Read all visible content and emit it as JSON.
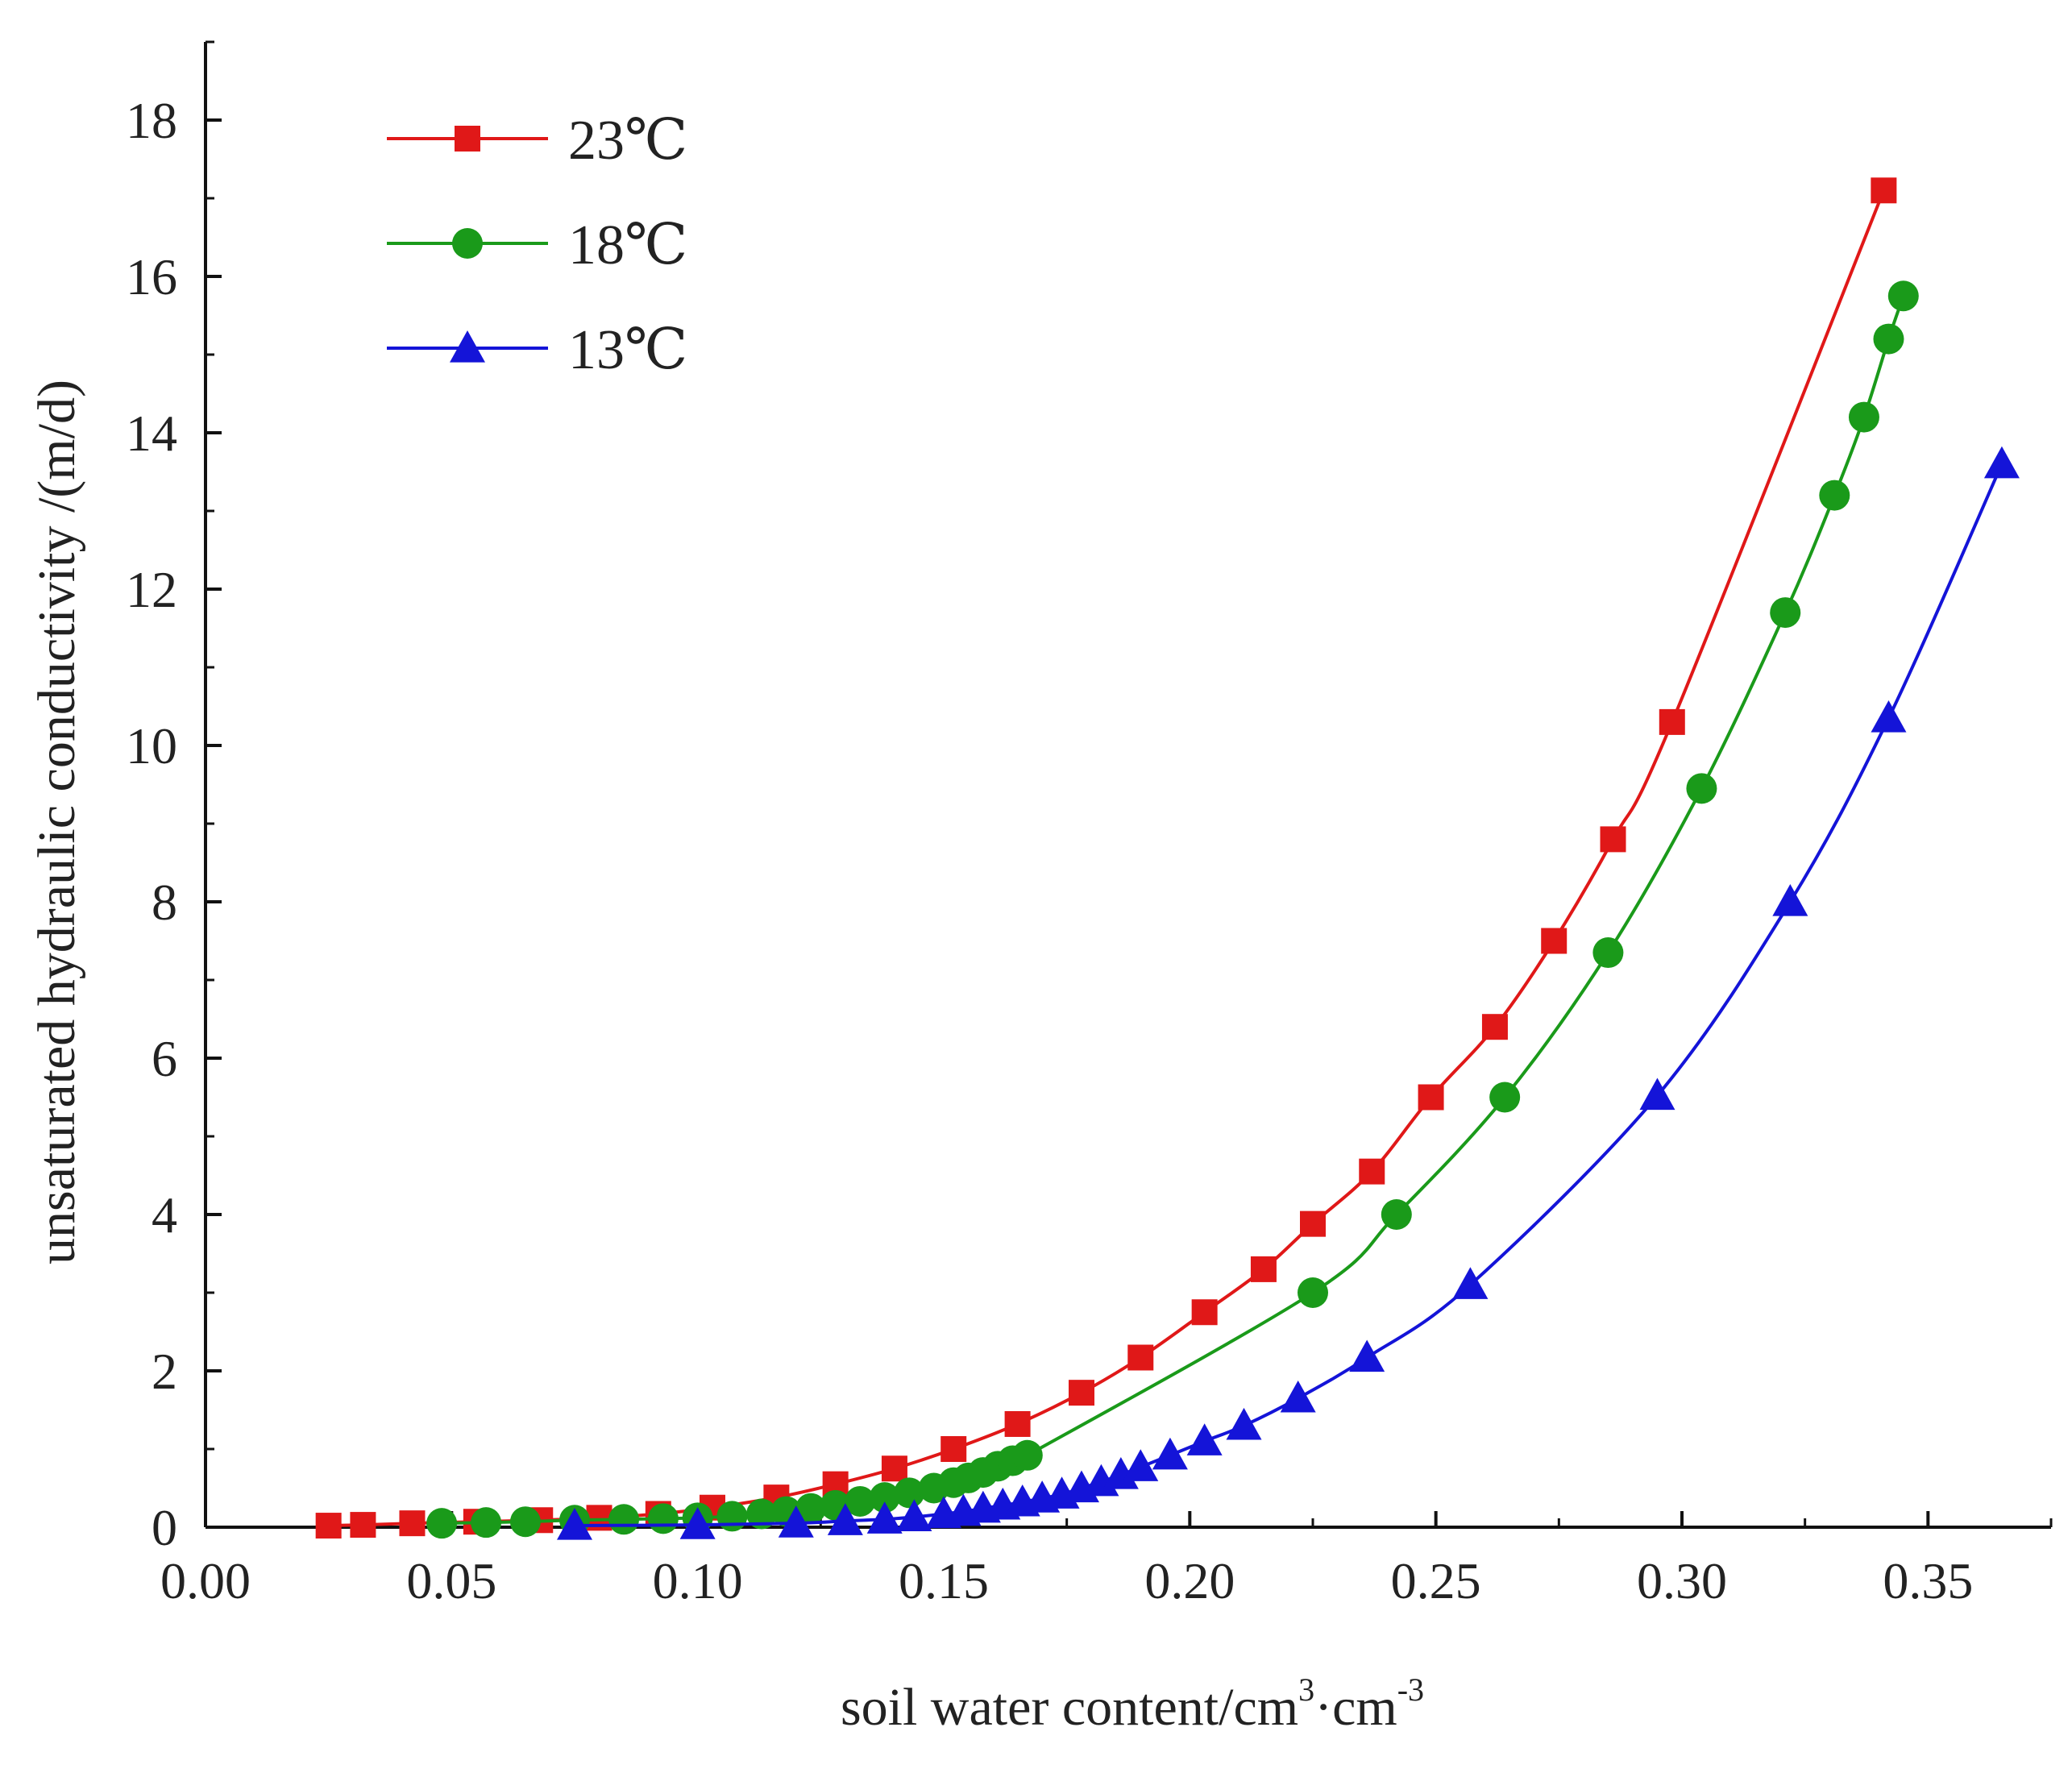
{
  "chart_data": {
    "type": "line",
    "title": "",
    "xlabel": "soil water content/cm",
    "xlabel_sup1": "3",
    "xlabel_mid": "·cm",
    "xlabel_sup2": "-3",
    "ylabel": "unsaturated hydraulic conductivity /(m/d)",
    "xlim": [
      0,
      0.375
    ],
    "ylim": [
      0,
      19
    ],
    "x_ticks": [
      "0.00",
      "0.05",
      "0.10",
      "0.15",
      "0.20",
      "0.25",
      "0.30",
      "0.35"
    ],
    "y_ticks": [
      "0",
      "2",
      "4",
      "6",
      "8",
      "10",
      "12",
      "14",
      "16",
      "18"
    ],
    "legend_position": "top-left",
    "series": [
      {
        "name": "23℃",
        "color": "#e01818",
        "marker": "square",
        "x": [
          0.025,
          0.032,
          0.042,
          0.055,
          0.068,
          0.08,
          0.092,
          0.103,
          0.116,
          0.128,
          0.14,
          0.152,
          0.165,
          0.178,
          0.19,
          0.203,
          0.215,
          0.225,
          0.237,
          0.249,
          0.262,
          0.274,
          0.286,
          0.298,
          0.341
        ],
        "y": [
          0.02,
          0.03,
          0.05,
          0.07,
          0.09,
          0.12,
          0.17,
          0.25,
          0.38,
          0.55,
          0.75,
          1.0,
          1.32,
          1.72,
          2.17,
          2.75,
          3.3,
          3.88,
          4.55,
          5.5,
          6.4,
          7.5,
          8.8,
          10.3,
          17.1
        ]
      },
      {
        "name": "18℃",
        "color": "#1a9a1a",
        "marker": "circle",
        "x": [
          0.048,
          0.057,
          0.065,
          0.075,
          0.085,
          0.093,
          0.1,
          0.107,
          0.113,
          0.118,
          0.123,
          0.128,
          0.133,
          0.138,
          0.143,
          0.148,
          0.152,
          0.155,
          0.158,
          0.161,
          0.164,
          0.167,
          0.225,
          0.242,
          0.264,
          0.285,
          0.304,
          0.321,
          0.331,
          0.337,
          0.342,
          0.345
        ],
        "y": [
          0.05,
          0.06,
          0.07,
          0.09,
          0.1,
          0.11,
          0.12,
          0.14,
          0.17,
          0.2,
          0.24,
          0.28,
          0.33,
          0.38,
          0.44,
          0.5,
          0.57,
          0.63,
          0.7,
          0.78,
          0.85,
          0.92,
          3.0,
          4.0,
          5.5,
          7.35,
          9.45,
          11.7,
          13.2,
          14.2,
          15.2,
          15.75
        ]
      },
      {
        "name": "13℃",
        "color": "#1414d8",
        "marker": "triangle",
        "x": [
          0.075,
          0.1,
          0.12,
          0.13,
          0.138,
          0.144,
          0.15,
          0.154,
          0.158,
          0.162,
          0.166,
          0.17,
          0.174,
          0.178,
          0.182,
          0.186,
          0.19,
          0.196,
          0.203,
          0.211,
          0.222,
          0.236,
          0.257,
          0.295,
          0.322,
          0.342,
          0.365
        ],
        "y": [
          0.02,
          0.03,
          0.05,
          0.08,
          0.1,
          0.13,
          0.17,
          0.2,
          0.24,
          0.28,
          0.32,
          0.37,
          0.42,
          0.5,
          0.58,
          0.67,
          0.77,
          0.92,
          1.1,
          1.3,
          1.65,
          2.17,
          3.1,
          5.52,
          8.0,
          10.35,
          13.6
        ]
      }
    ]
  }
}
